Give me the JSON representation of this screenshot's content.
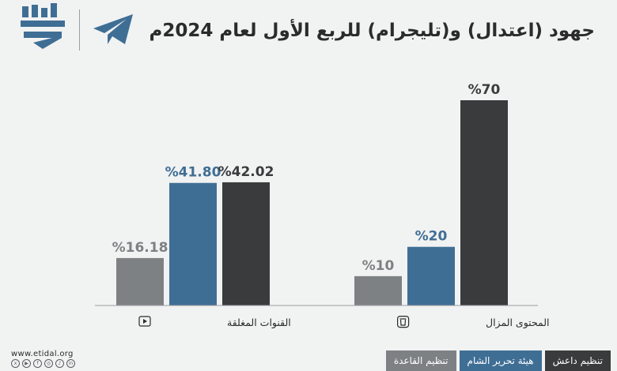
{
  "title": "جهود (اعتدال) و(تليجرام) للربع الأول لعام 2024م",
  "website": "www.etidal.org",
  "colors": {
    "background": "#f1f2f2",
    "isis": "#3a3b3d",
    "hts": "#3f6e95",
    "qaeda": "#7e8184",
    "telegram": "#3f6e95"
  },
  "icons": {
    "removed_content": "trash-icon",
    "closed_channels": "play-icon"
  },
  "legend": [
    {
      "name": "تنظيم داعش",
      "color": "#3a3b3d"
    },
    {
      "name": "هيئة تحرير الشام",
      "color": "#3f6e95"
    },
    {
      "name": "تنظيم القاعدة",
      "color": "#7e8184"
    }
  ],
  "chart_data": {
    "type": "bar",
    "title": "جهود (اعتدال) و(تليجرام) للربع الأول لعام 2024م",
    "categories": [
      "القنوات المغلقة",
      "المحتوى المزال"
    ],
    "series": [
      {
        "name": "تنظيم القاعدة",
        "values": [
          16.18,
          10
        ],
        "labels": [
          "%16.18",
          "%10"
        ]
      },
      {
        "name": "هيئة تحرير الشام",
        "values": [
          41.8,
          20
        ],
        "labels": [
          "%41.80",
          "%20"
        ]
      },
      {
        "name": "تنظيم داعش",
        "values": [
          42.02,
          70
        ],
        "labels": [
          "%42.02",
          "%70"
        ]
      }
    ],
    "ylim": [
      0,
      70
    ],
    "grid": false,
    "legend_position": "bottom-right"
  }
}
